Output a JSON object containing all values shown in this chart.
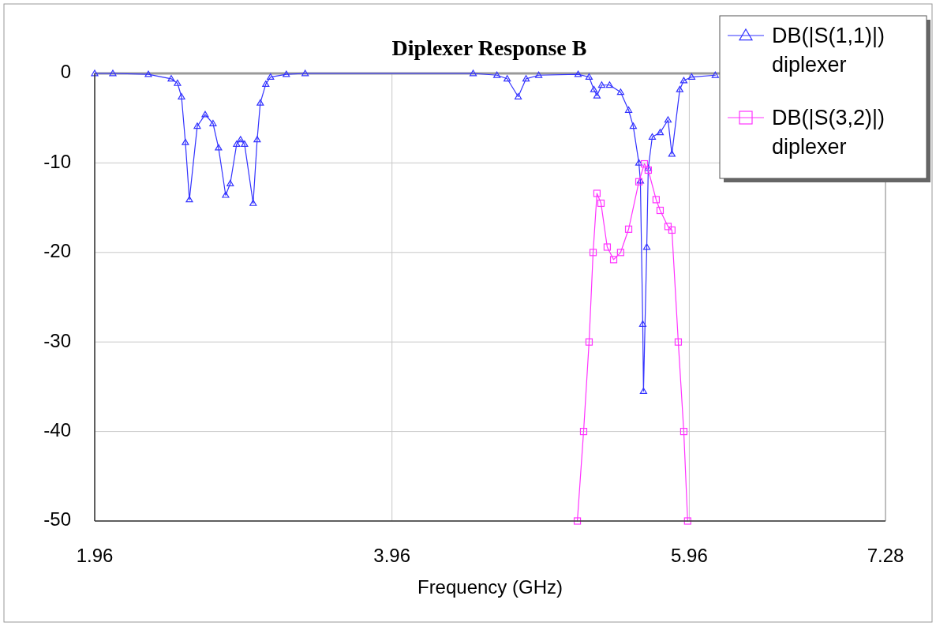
{
  "chart_data": {
    "type": "line",
    "title": "Diplexer Response B",
    "xlabel": "Frequency (GHz)",
    "xlim": [
      1.96,
      7.28
    ],
    "xticks": [
      1.96,
      3.96,
      5.96,
      7.28
    ],
    "ylim": [
      -50,
      0
    ],
    "yticks": [
      0,
      -10,
      -20,
      -30,
      -40,
      -50
    ],
    "grid": true,
    "legend": "top right",
    "line_style": "solid",
    "series": [
      {
        "name": "DB(|S(1,1)|) diplexer",
        "color": "#3333ff",
        "marker": "triangle",
        "x": [
          1.96,
          2.082,
          2.321,
          2.475,
          2.517,
          2.544,
          2.57,
          2.597,
          2.65,
          2.703,
          2.756,
          2.793,
          2.841,
          2.872,
          2.915,
          2.941,
          2.968,
          3.026,
          3.053,
          3.074,
          3.111,
          3.143,
          3.249,
          3.376,
          4.506,
          4.666,
          4.735,
          4.809,
          4.862,
          4.947,
          5.212,
          5.286,
          5.318,
          5.339,
          5.371,
          5.424,
          5.498,
          5.552,
          5.583,
          5.621,
          5.631,
          5.647,
          5.652,
          5.674,
          5.684,
          5.711,
          5.764,
          5.817,
          5.843,
          5.896,
          5.923,
          5.976,
          6.135
        ],
        "values": [
          0,
          0,
          -0.1,
          -0.6,
          -1.1,
          -2.6,
          -7.7,
          -14.1,
          -5.9,
          -4.6,
          -5.6,
          -8.3,
          -13.6,
          -12.3,
          -7.9,
          -7.4,
          -7.9,
          -14.5,
          -7.4,
          -3.3,
          -1.2,
          -0.4,
          -0.1,
          0,
          0,
          -0.2,
          -0.6,
          -2.6,
          -0.6,
          -0.2,
          -0.1,
          -0.4,
          -1.8,
          -2.5,
          -1.3,
          -1.3,
          -2.1,
          -4.1,
          -5.9,
          -10,
          -12,
          -28,
          -35.5,
          -19.4,
          -10.6,
          -7.1,
          -6.6,
          -5.2,
          -9.0,
          -1.8,
          -0.8,
          -0.4,
          -0.2
        ]
      },
      {
        "name": "DB(|S(3,2)|) diplexer",
        "color": "#ff33ff",
        "marker": "square",
        "x": [
          5.207,
          5.249,
          5.286,
          5.313,
          5.339,
          5.366,
          5.408,
          5.451,
          5.498,
          5.552,
          5.621,
          5.658,
          5.684,
          5.737,
          5.764,
          5.817,
          5.843,
          5.886,
          5.923,
          5.949
        ],
        "values": [
          -50,
          -40,
          -30,
          -20,
          -13.4,
          -14.5,
          -19.4,
          -20.8,
          -20,
          -17.4,
          -12.1,
          -10.1,
          -10.8,
          -14.1,
          -15.3,
          -17.1,
          -17.5,
          -30,
          -40,
          -50
        ]
      }
    ]
  }
}
